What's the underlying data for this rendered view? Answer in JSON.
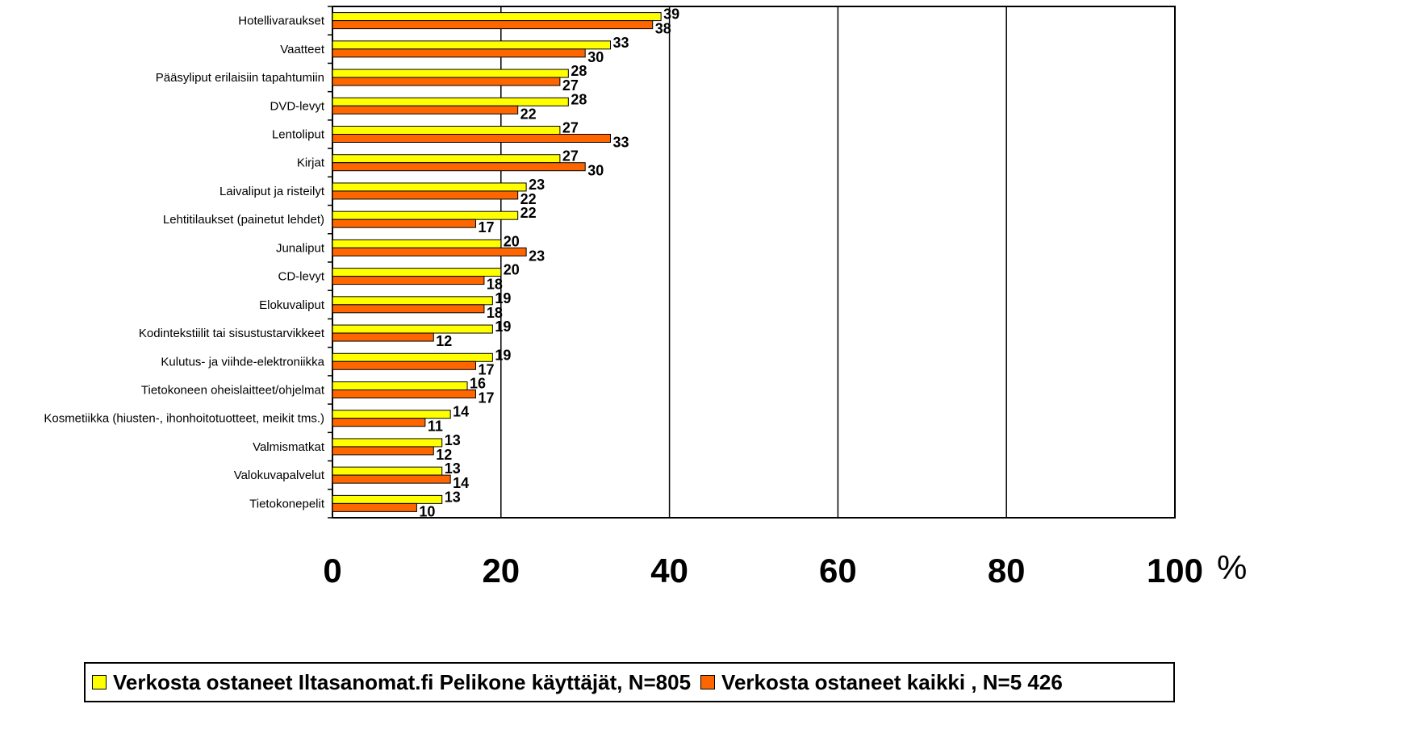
{
  "chart_data": {
    "type": "bar",
    "orientation": "horizontal",
    "categories": [
      "Hotellivaraukset",
      "Vaatteet",
      "Pääsyliput erilaisiin tapahtumiin",
      "DVD-levyt",
      "Lentoliput",
      "Kirjat",
      "Laivaliput ja risteilyt",
      "Lehtitilaukset (painetut lehdet)",
      "Junaliput",
      "CD-levyt",
      "Elokuvaliput",
      "Kodintekstiilit tai sisustustarvikkeet",
      "Kulutus- ja viihde-elektroniikka",
      "Tietokoneen oheislaitteet/ohjelmat",
      "Kosmetiikka (hiusten-, ihonhoitotuotteet, meikit tms.)",
      "Valmismatkat",
      "Valokuvapalvelut",
      "Tietokonepelit"
    ],
    "series": [
      {
        "name": "Verkosta ostaneet Iltasanomat.fi Pelikone käyttäjät, N=805",
        "color": "#ffff00",
        "values": [
          39,
          33,
          28,
          28,
          27,
          27,
          23,
          22,
          20,
          20,
          19,
          19,
          19,
          16,
          14,
          13,
          13,
          13
        ]
      },
      {
        "name": "Verkosta ostaneet kaikki , N=5 426",
        "color": "#ff6600",
        "values": [
          38,
          30,
          27,
          22,
          33,
          30,
          22,
          17,
          23,
          18,
          18,
          12,
          17,
          17,
          11,
          12,
          14,
          10
        ]
      }
    ],
    "xlim": [
      0,
      100
    ],
    "xticks": [
      "0",
      "20",
      "40",
      "60",
      "80",
      "100"
    ],
    "unit": "%",
    "grid": "vertical",
    "legend_position": "bottom"
  }
}
